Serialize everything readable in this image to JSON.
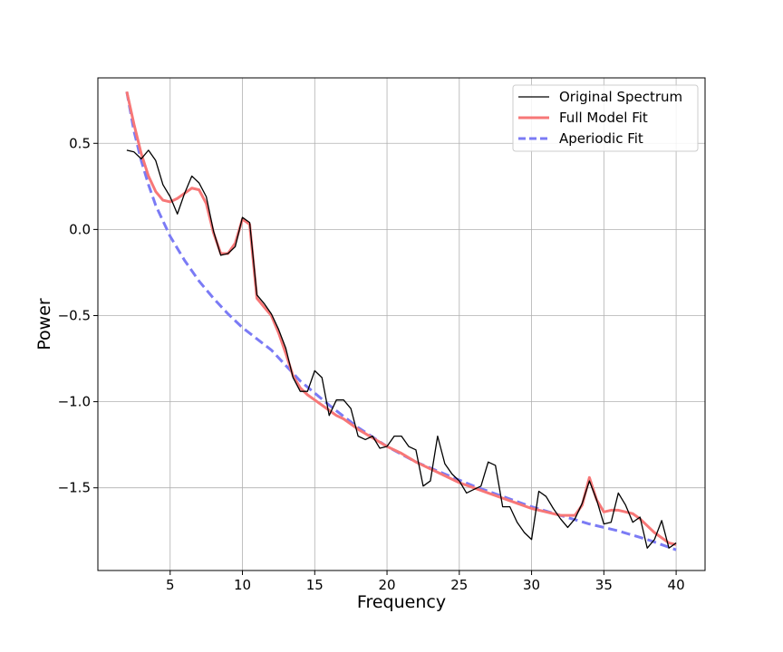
{
  "chart_data": {
    "type": "line",
    "title": "",
    "xlabel": "Frequency",
    "ylabel": "Power",
    "xlim": [
      0,
      42
    ],
    "ylim": [
      -1.98,
      0.88
    ],
    "xticks": [
      5,
      10,
      15,
      20,
      25,
      30,
      35,
      40
    ],
    "yticks": [
      -1.5,
      -1.0,
      -0.5,
      0.0,
      0.5
    ],
    "ytick_labels": [
      "−1.5",
      "−1.0",
      "−0.5",
      "0.0",
      "0.5"
    ],
    "grid": true,
    "legend_position": "top-right",
    "series": [
      {
        "name": "Original Spectrum",
        "color": "#000000",
        "style": "solid",
        "x": [
          2,
          2.5,
          3,
          3.5,
          4,
          4.5,
          5,
          5.5,
          6,
          6.5,
          7,
          7.5,
          8,
          8.5,
          9,
          9.5,
          10,
          10.5,
          11,
          11.5,
          12,
          12.5,
          13,
          13.5,
          14,
          14.5,
          15,
          15.5,
          16,
          16.5,
          17,
          17.5,
          18,
          18.5,
          19,
          19.5,
          20,
          20.5,
          21,
          21.5,
          22,
          22.5,
          23,
          23.5,
          24,
          24.5,
          25,
          25.5,
          26,
          26.5,
          27,
          27.5,
          28,
          28.5,
          29,
          29.5,
          30,
          30.5,
          31,
          31.5,
          32,
          32.5,
          33,
          33.5,
          34,
          34.5,
          35,
          35.5,
          36,
          36.5,
          37,
          37.5,
          38,
          38.5,
          39,
          39.5,
          40
        ],
        "y": [
          0.46,
          0.45,
          0.41,
          0.46,
          0.4,
          0.26,
          0.19,
          0.09,
          0.21,
          0.31,
          0.27,
          0.19,
          -0.01,
          -0.15,
          -0.14,
          -0.1,
          0.07,
          0.04,
          -0.38,
          -0.43,
          -0.49,
          -0.58,
          -0.69,
          -0.86,
          -0.94,
          -0.94,
          -0.82,
          -0.86,
          -1.08,
          -0.99,
          -0.99,
          -1.04,
          -1.2,
          -1.22,
          -1.2,
          -1.27,
          -1.26,
          -1.2,
          -1.2,
          -1.26,
          -1.28,
          -1.49,
          -1.46,
          -1.2,
          -1.36,
          -1.42,
          -1.46,
          -1.53,
          -1.51,
          -1.49,
          -1.35,
          -1.37,
          -1.61,
          -1.61,
          -1.7,
          -1.76,
          -1.8,
          -1.52,
          -1.55,
          -1.62,
          -1.68,
          -1.73,
          -1.68,
          -1.59,
          -1.46,
          -1.57,
          -1.71,
          -1.7,
          -1.53,
          -1.6,
          -1.7,
          -1.67,
          -1.85,
          -1.8,
          -1.69,
          -1.85,
          -1.82
        ]
      },
      {
        "name": "Full Model Fit",
        "color": "#f77777",
        "style": "solid",
        "x": [
          2,
          2.5,
          3,
          3.5,
          4,
          4.5,
          5,
          5.5,
          6,
          6.5,
          7,
          7.5,
          8,
          8.5,
          9,
          9.5,
          10,
          10.5,
          11,
          11.5,
          12,
          12.5,
          13,
          13.5,
          14,
          14.5,
          15,
          15.5,
          16,
          16.5,
          17,
          18,
          19,
          20,
          21,
          22,
          23,
          24,
          25,
          26,
          27,
          28,
          29,
          30,
          31,
          32,
          33,
          33.5,
          34,
          34.5,
          35,
          35.5,
          36,
          36.5,
          37,
          37.5,
          38,
          38.5,
          39,
          39.5,
          40
        ],
        "y": [
          0.8,
          0.61,
          0.44,
          0.31,
          0.22,
          0.17,
          0.16,
          0.18,
          0.21,
          0.24,
          0.23,
          0.15,
          -0.02,
          -0.14,
          -0.14,
          -0.08,
          0.06,
          0.03,
          -0.4,
          -0.45,
          -0.5,
          -0.6,
          -0.72,
          -0.85,
          -0.92,
          -0.96,
          -0.99,
          -1.02,
          -1.05,
          -1.08,
          -1.1,
          -1.16,
          -1.21,
          -1.26,
          -1.3,
          -1.35,
          -1.39,
          -1.43,
          -1.47,
          -1.5,
          -1.53,
          -1.56,
          -1.59,
          -1.62,
          -1.64,
          -1.66,
          -1.66,
          -1.6,
          -1.44,
          -1.57,
          -1.64,
          -1.63,
          -1.63,
          -1.64,
          -1.65,
          -1.68,
          -1.72,
          -1.76,
          -1.79,
          -1.82,
          -1.83
        ]
      },
      {
        "name": "Aperiodic Fit",
        "color": "#7b7bf5",
        "style": "dashed",
        "x": [
          2,
          2.5,
          3,
          3.5,
          4,
          5,
          6,
          7,
          8,
          9,
          10,
          12,
          14,
          16,
          18,
          20,
          22,
          24,
          26,
          28,
          30,
          32,
          34,
          36,
          38,
          40
        ],
        "y": [
          0.8,
          0.57,
          0.4,
          0.26,
          0.14,
          -0.04,
          -0.18,
          -0.3,
          -0.4,
          -0.49,
          -0.57,
          -0.7,
          -0.88,
          -1.02,
          -1.15,
          -1.26,
          -1.35,
          -1.42,
          -1.49,
          -1.55,
          -1.61,
          -1.66,
          -1.71,
          -1.75,
          -1.8,
          -1.86
        ]
      }
    ]
  }
}
